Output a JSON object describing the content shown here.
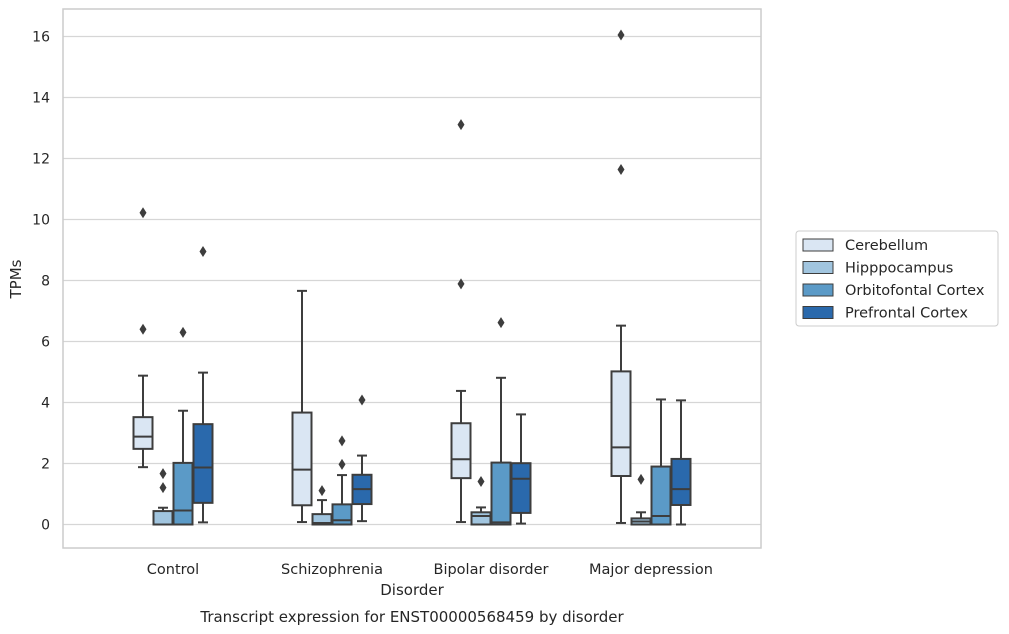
{
  "chart_data": {
    "type": "box",
    "caption": "Transcript expression for ENST00000568459 by disorder",
    "xlabel": "Disorder",
    "ylabel": "TPMs",
    "ylim": [
      -0.75,
      16.8
    ],
    "yticks": [
      0,
      2,
      4,
      6,
      8,
      10,
      12,
      14,
      16
    ],
    "grid": "horizontal",
    "legend_position": "right",
    "categories": [
      "Control",
      "Schizophrenia",
      "Bipolar disorder",
      "Major depression"
    ],
    "series": [
      {
        "name": "Cerebellum",
        "color": "#dae6f3",
        "boxes": [
          {
            "whisker_low": 1.88,
            "q1": 2.48,
            "median": 2.88,
            "q3": 3.52,
            "whisker_high": 4.88,
            "outliers": [
              6.4,
              10.22
            ]
          },
          {
            "whisker_low": 0.08,
            "q1": 0.63,
            "median": 1.8,
            "q3": 3.67,
            "whisker_high": 7.66,
            "outliers": []
          },
          {
            "whisker_low": 0.08,
            "q1": 1.52,
            "median": 2.14,
            "q3": 3.32,
            "whisker_high": 4.38,
            "outliers": [
              7.89,
              13.11
            ]
          },
          {
            "whisker_low": 0.05,
            "q1": 1.59,
            "median": 2.53,
            "q3": 5.02,
            "whisker_high": 6.52,
            "outliers": [
              11.64,
              16.05
            ]
          }
        ]
      },
      {
        "name": "Hipppocampus",
        "color": "#a1c5df",
        "boxes": [
          {
            "whisker_low": 0.0,
            "q1": 0.0,
            "median": 0.0,
            "q3": 0.44,
            "whisker_high": 0.55,
            "outliers": [
              1.21,
              1.67
            ]
          },
          {
            "whisker_low": 0.0,
            "q1": 0.0,
            "median": 0.05,
            "q3": 0.34,
            "whisker_high": 0.8,
            "outliers": [
              1.11
            ]
          },
          {
            "whisker_low": 0.0,
            "q1": 0.0,
            "median": 0.28,
            "q3": 0.4,
            "whisker_high": 0.56,
            "outliers": [
              1.41
            ]
          },
          {
            "whisker_low": 0.0,
            "q1": 0.0,
            "median": 0.1,
            "q3": 0.2,
            "whisker_high": 0.4,
            "outliers": [
              1.48
            ]
          }
        ]
      },
      {
        "name": "Orbitofontal Cortex",
        "color": "#5b9ac7",
        "boxes": [
          {
            "whisker_low": 0.0,
            "q1": 0.0,
            "median": 0.46,
            "q3": 2.02,
            "whisker_high": 3.73,
            "outliers": [
              6.3
            ]
          },
          {
            "whisker_low": 0.0,
            "q1": 0.0,
            "median": 0.14,
            "q3": 0.66,
            "whisker_high": 1.62,
            "outliers": [
              1.97,
              2.74
            ]
          },
          {
            "whisker_low": 0.0,
            "q1": 0.0,
            "median": 0.07,
            "q3": 2.03,
            "whisker_high": 4.81,
            "outliers": [
              6.62
            ]
          },
          {
            "whisker_low": 0.0,
            "q1": 0.0,
            "median": 0.28,
            "q3": 1.9,
            "whisker_high": 4.1,
            "outliers": []
          }
        ]
      },
      {
        "name": "Prefrontal Cortex",
        "color": "#2a69ac",
        "boxes": [
          {
            "whisker_low": 0.07,
            "q1": 0.71,
            "median": 1.87,
            "q3": 3.29,
            "whisker_high": 4.98,
            "outliers": [
              8.95
            ]
          },
          {
            "whisker_low": 0.11,
            "q1": 0.67,
            "median": 1.16,
            "q3": 1.63,
            "whisker_high": 2.26,
            "outliers": [
              4.08
            ]
          },
          {
            "whisker_low": 0.03,
            "q1": 0.38,
            "median": 1.5,
            "q3": 2.01,
            "whisker_high": 3.61,
            "outliers": []
          },
          {
            "whisker_low": 0.0,
            "q1": 0.64,
            "median": 1.16,
            "q3": 2.15,
            "whisker_high": 4.07,
            "outliers": []
          }
        ]
      }
    ]
  }
}
